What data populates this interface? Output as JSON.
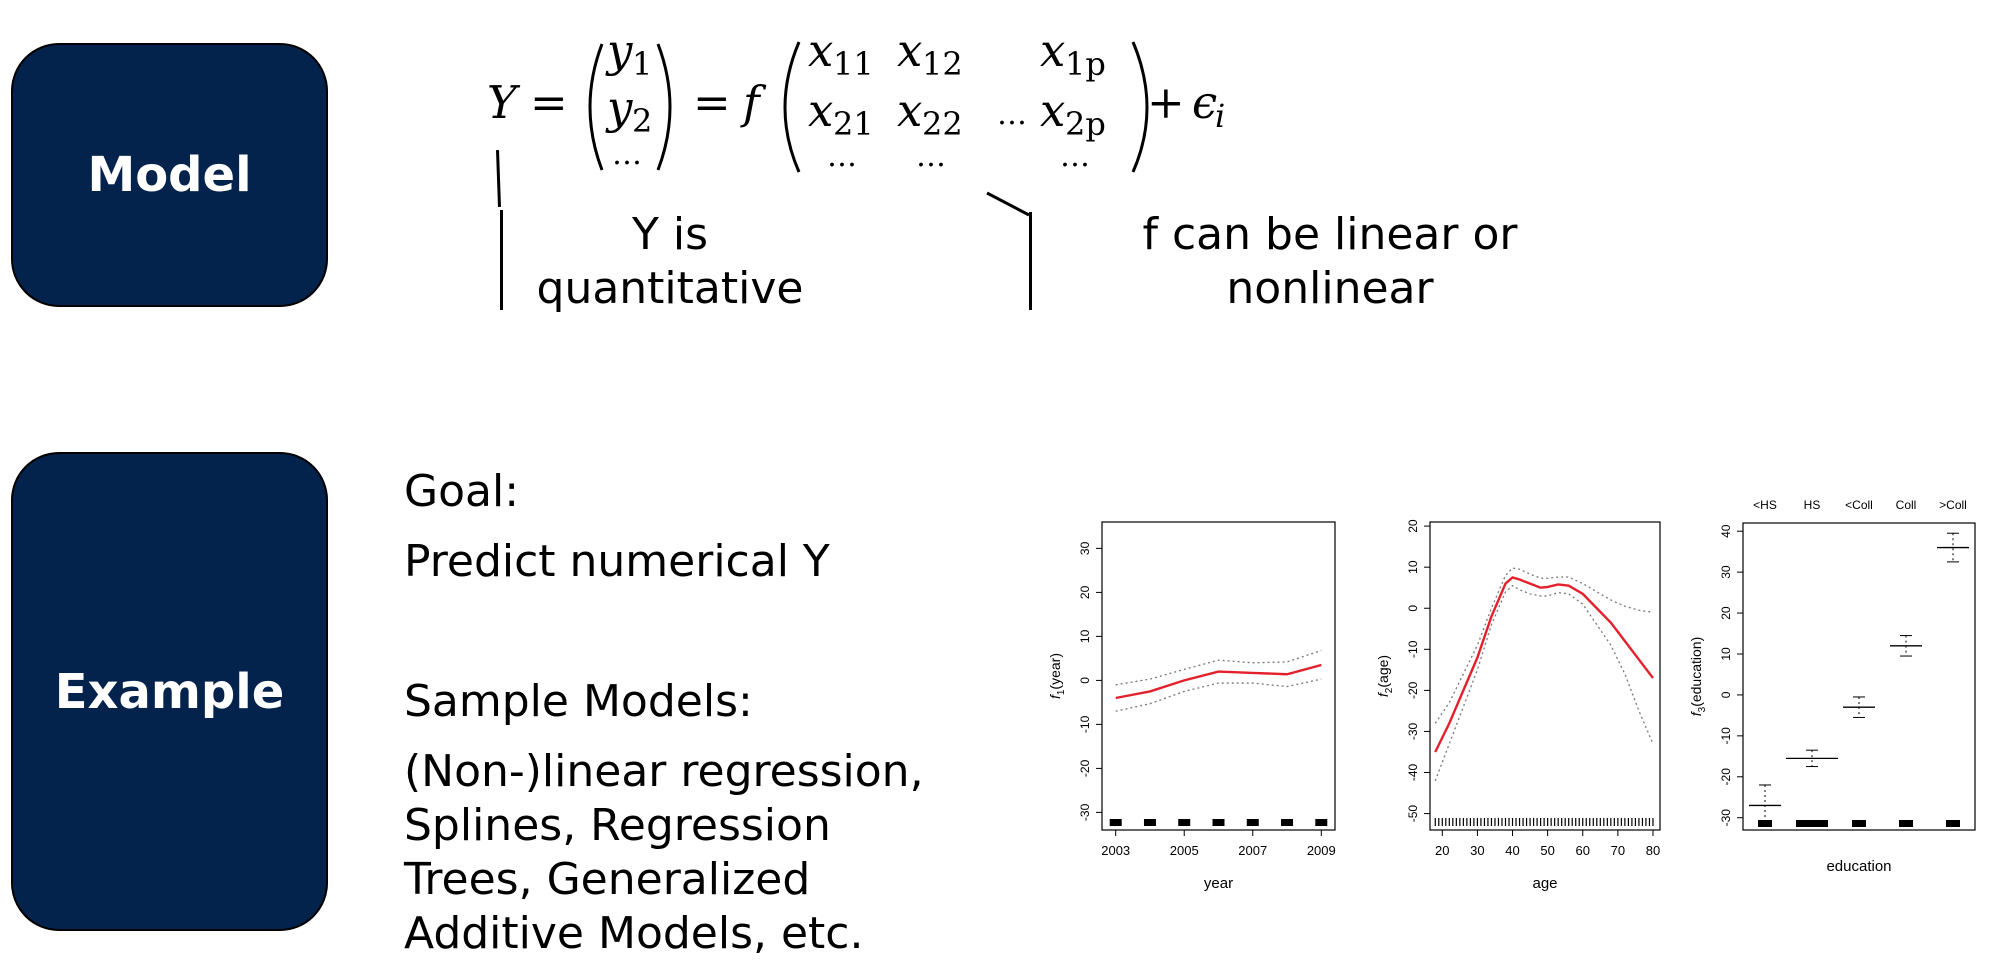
{
  "boxes": {
    "model": "Model",
    "example": "Example"
  },
  "equation": {
    "Y": "Y",
    "eq": "=",
    "y": "y",
    "y1_sub": "1",
    "y2_sub": "2",
    "dots": "…",
    "f": "f",
    "x": "x",
    "x11": "11",
    "x12": "12",
    "x1p": "1p",
    "x21": "21",
    "x22": "22",
    "x2p": "2p",
    "ellipsis_mid": "…",
    "plus": "+",
    "epsilon": "ϵ",
    "eps_sub": "i"
  },
  "annotations": {
    "y_note_1": "Y is",
    "y_note_2": "quantitative",
    "f_note_1": "f can be linear or",
    "f_note_2": "nonlinear"
  },
  "example": {
    "goal_label": "Goal:",
    "goal_text": "Predict numerical Y",
    "models_label": "Sample Models:",
    "models_lines": [
      "(Non-)linear regression,",
      "Splines, Regression",
      "Trees, Generalized",
      "Additive Models, etc."
    ]
  },
  "chart_data": [
    {
      "type": "line",
      "xlabel": "year",
      "ylabel": "f1(year)",
      "xlim": [
        2002.6,
        2009.4
      ],
      "ylim": [
        -34,
        36
      ],
      "x_ticks": [
        2003,
        2005,
        2007,
        2009
      ],
      "y_ticks": [
        -30,
        -20,
        -10,
        0,
        10,
        20,
        30
      ],
      "series": [
        {
          "style": "fit",
          "color": "#e3202b",
          "x": [
            2003,
            2004,
            2005,
            2006,
            2007,
            2008,
            2009
          ],
          "y": [
            -4,
            -2.5,
            0,
            2,
            1.7,
            1.4,
            3.5
          ]
        },
        {
          "style": "upper",
          "color": "#777777",
          "x": [
            2003,
            2004,
            2005,
            2006,
            2007,
            2008,
            2009
          ],
          "y": [
            -1,
            0.3,
            2.5,
            4.6,
            4,
            4.2,
            6.8
          ]
        },
        {
          "style": "lower",
          "color": "#777777",
          "x": [
            2003,
            2004,
            2005,
            2006,
            2007,
            2008,
            2009
          ],
          "y": [
            -7,
            -5.3,
            -2.5,
            -0.6,
            -0.6,
            -1.4,
            0.3
          ]
        }
      ],
      "rug": [
        2003,
        2004,
        2005,
        2006,
        2007,
        2008,
        2009
      ]
    },
    {
      "type": "line",
      "xlabel": "age",
      "ylabel": "f2(age)",
      "xlim": [
        16.5,
        82
      ],
      "ylim": [
        -54,
        21
      ],
      "x_ticks": [
        20,
        30,
        40,
        50,
        60,
        70,
        80
      ],
      "y_ticks": [
        -50,
        -40,
        -30,
        -20,
        -10,
        0,
        10,
        20
      ],
      "series": [
        {
          "style": "fit",
          "color": "#e3202b",
          "x": [
            18,
            22,
            26,
            30,
            34,
            38,
            40,
            42,
            45,
            48,
            50,
            53,
            56,
            60,
            64,
            68,
            72,
            76,
            80
          ],
          "y": [
            -35,
            -28,
            -20,
            -12,
            -2,
            6,
            7.5,
            7,
            6,
            5,
            5.2,
            5.8,
            5.5,
            3.5,
            0,
            -3.5,
            -8,
            -12.5,
            -17
          ]
        },
        {
          "style": "upper",
          "color": "#777777",
          "x": [
            18,
            22,
            26,
            30,
            34,
            38,
            40,
            42,
            45,
            48,
            50,
            53,
            56,
            60,
            64,
            68,
            72,
            76,
            80
          ],
          "y": [
            -28,
            -23,
            -16,
            -9,
            0,
            8,
            9.8,
            9.5,
            8.3,
            7.3,
            7.3,
            7.6,
            7.6,
            6,
            4,
            2,
            0.5,
            -0.5,
            -1
          ]
        },
        {
          "style": "lower",
          "color": "#777777",
          "x": [
            18,
            22,
            26,
            30,
            34,
            38,
            40,
            42,
            45,
            48,
            50,
            53,
            56,
            60,
            64,
            68,
            72,
            76,
            80
          ],
          "y": [
            -42,
            -33,
            -24,
            -15,
            -4,
            4,
            5.5,
            4.5,
            3.5,
            3,
            3,
            3.8,
            3.5,
            1,
            -4,
            -9,
            -16,
            -25,
            -33
          ]
        }
      ],
      "rug_range": [
        18,
        80
      ]
    },
    {
      "type": "scatter",
      "xlabel": "education",
      "ylabel": "f3(education)",
      "ylim": [
        -33,
        42
      ],
      "y_ticks": [
        -30,
        -20,
        -10,
        0,
        10,
        20,
        30,
        40
      ],
      "categories": [
        "<HS",
        "HS",
        "<Coll",
        "Coll",
        ">Coll"
      ],
      "values": [
        -27,
        -15.5,
        -3,
        12,
        36
      ],
      "upper": [
        -22,
        -13.5,
        -0.5,
        14.5,
        39.5
      ],
      "lower": [
        -32,
        -17.5,
        -5.5,
        9.5,
        32.5
      ]
    }
  ]
}
